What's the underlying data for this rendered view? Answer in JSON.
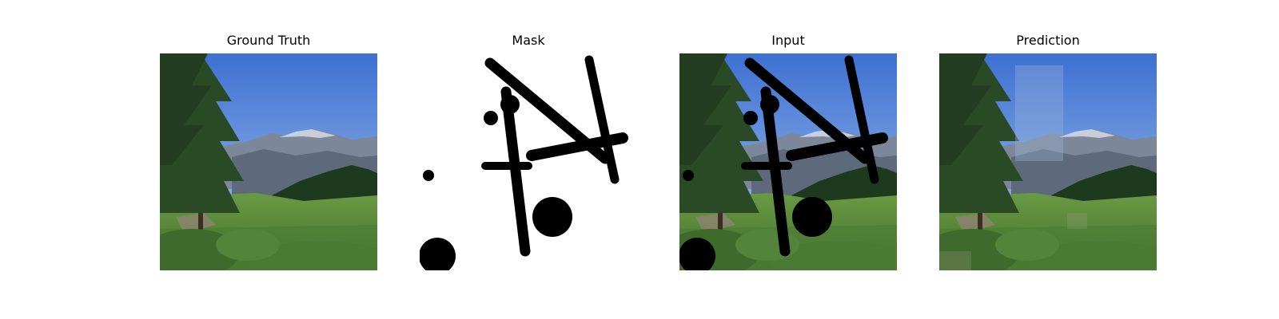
{
  "figure": {
    "panels": [
      {
        "id": "ground-truth",
        "title": "Ground Truth"
      },
      {
        "id": "mask",
        "title": "Mask"
      },
      {
        "id": "input",
        "title": "Input"
      },
      {
        "id": "prediction",
        "title": "Prediction"
      }
    ]
  },
  "colors": {
    "sky_top": "#3f74d6",
    "sky_bottom": "#9cc0ec",
    "mountain": "#6f7b8c",
    "forest": "#1f3a1c",
    "meadow": "#5e8f3c",
    "tree": "#2c4a28",
    "mask_hole": "#000000",
    "mask_bg": "#ffffff"
  }
}
